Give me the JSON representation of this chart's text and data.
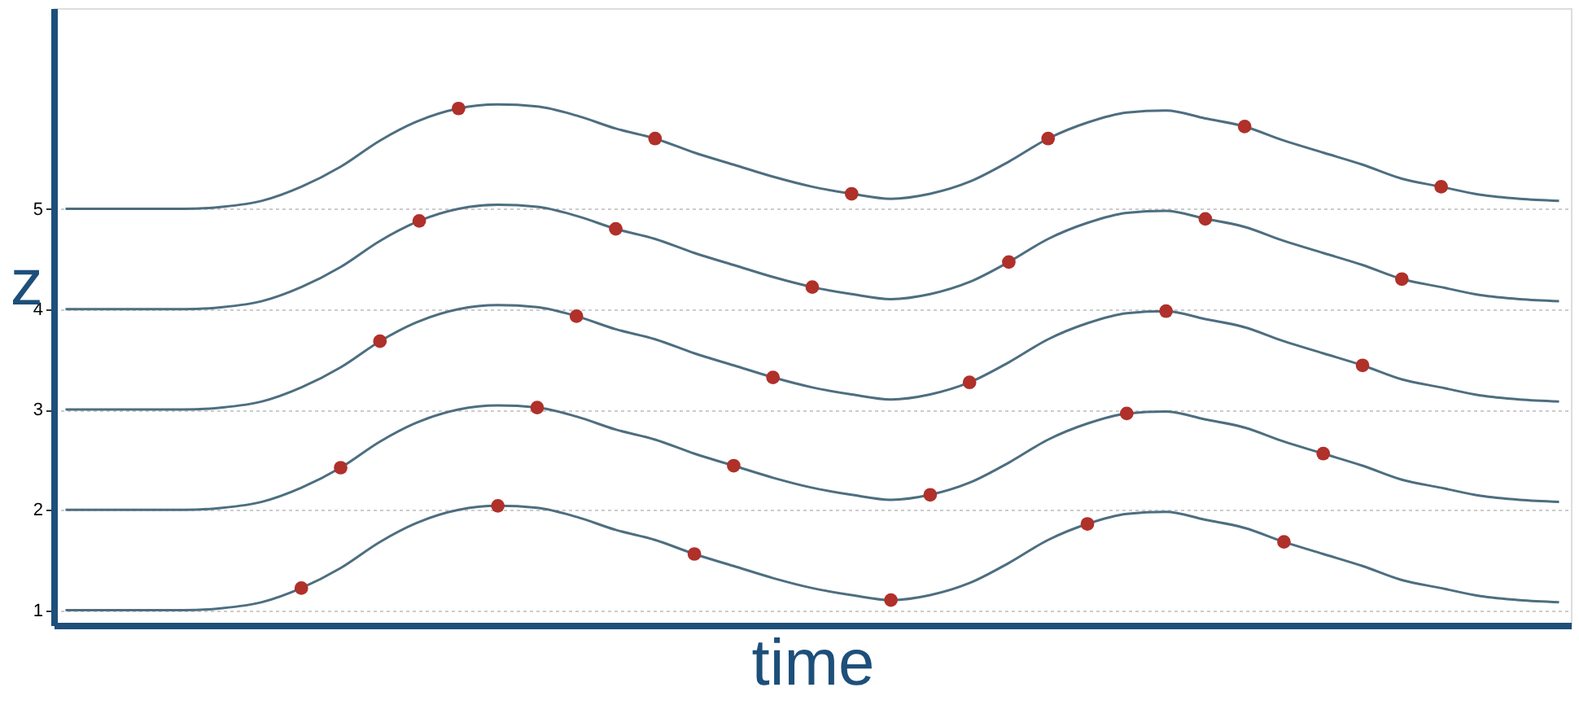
{
  "chart_data": {
    "type": "line",
    "xlabel": "time",
    "ylabel": "z",
    "categories": [
      null,
      null,
      null,
      null,
      null,
      null,
      null,
      null,
      null,
      null,
      null,
      null,
      null,
      null,
      null,
      null,
      null,
      null,
      null,
      null,
      null,
      null,
      null,
      null,
      null,
      null,
      null,
      null,
      null,
      null,
      null,
      null,
      null,
      null,
      null,
      null,
      null,
      null,
      null
    ],
    "series": [
      {
        "color": "#4d6e80",
        "values": [
          1,
          1,
          1,
          1,
          1.02,
          1.08,
          1.22,
          1.42,
          1.68,
          1.88,
          2.0,
          2.04,
          2.02,
          1.93,
          1.8,
          1.7,
          1.56,
          1.44,
          1.32,
          1.22,
          1.15,
          1.1,
          1.15,
          1.27,
          1.47,
          1.7,
          1.86,
          1.96,
          1.98,
          1.9,
          1.82,
          1.68,
          1.56,
          1.44,
          1.3,
          1.22,
          1.14,
          1.1,
          1.08
        ]
      },
      {
        "color": "#4d6e80",
        "values": [
          2,
          2,
          2,
          2,
          2.02,
          2.08,
          2.22,
          2.42,
          2.68,
          2.88,
          3.0,
          3.04,
          3.02,
          2.93,
          2.8,
          2.7,
          2.56,
          2.44,
          2.32,
          2.22,
          2.15,
          2.1,
          2.15,
          2.27,
          2.47,
          2.7,
          2.86,
          2.96,
          2.98,
          2.9,
          2.82,
          2.68,
          2.56,
          2.44,
          2.3,
          2.22,
          2.14,
          2.1,
          2.08
        ]
      },
      {
        "color": "#4d6e80",
        "values": [
          3,
          3,
          3,
          3,
          3.02,
          3.08,
          3.22,
          3.42,
          3.68,
          3.88,
          4.0,
          4.04,
          4.02,
          3.93,
          3.8,
          3.7,
          3.56,
          3.44,
          3.32,
          3.22,
          3.15,
          3.1,
          3.15,
          3.27,
          3.47,
          3.7,
          3.86,
          3.96,
          3.98,
          3.9,
          3.82,
          3.68,
          3.56,
          3.44,
          3.3,
          3.22,
          3.14,
          3.1,
          3.08
        ]
      },
      {
        "color": "#4d6e80",
        "values": [
          4,
          4,
          4,
          4,
          4.02,
          4.08,
          4.22,
          4.42,
          4.68,
          4.88,
          5.0,
          5.04,
          5.02,
          4.93,
          4.8,
          4.7,
          4.56,
          4.44,
          4.32,
          4.22,
          4.15,
          4.1,
          4.15,
          4.27,
          4.47,
          4.7,
          4.86,
          4.96,
          4.98,
          4.9,
          4.82,
          4.68,
          4.56,
          4.44,
          4.3,
          4.22,
          4.14,
          4.1,
          4.08
        ]
      },
      {
        "color": "#4d6e80",
        "values": [
          5,
          5,
          5,
          5,
          5.02,
          5.08,
          5.22,
          5.42,
          5.68,
          5.88,
          6.0,
          6.04,
          6.02,
          5.93,
          5.8,
          5.7,
          5.56,
          5.44,
          5.32,
          5.22,
          5.15,
          5.1,
          5.15,
          5.27,
          5.47,
          5.7,
          5.86,
          5.96,
          5.98,
          5.9,
          5.82,
          5.68,
          5.56,
          5.44,
          5.3,
          5.22,
          5.14,
          5.1,
          5.08
        ]
      },
      {
        "type": "scatter",
        "marker": "circle",
        "color": "#b0302a",
        "values": [
          null,
          null,
          null,
          null,
          null,
          null,
          1.22,
          2.42,
          3.68,
          4.88,
          6.0,
          2.04,
          3.02,
          3.93,
          4.8,
          5.7,
          1.56,
          2.44,
          3.32,
          4.22,
          5.15,
          1.1,
          2.15,
          3.27,
          4.47,
          5.7,
          1.86,
          2.96,
          3.98,
          4.9,
          5.82,
          1.68,
          2.56,
          3.44,
          4.3,
          5.22,
          null,
          null,
          null
        ]
      }
    ],
    "ylim": [
      0.85,
      7
    ],
    "yticks": [
      1,
      2,
      3,
      4,
      5
    ],
    "grid": "y",
    "tick_labels": "y",
    "marker": "none",
    "line_style": "solid"
  }
}
